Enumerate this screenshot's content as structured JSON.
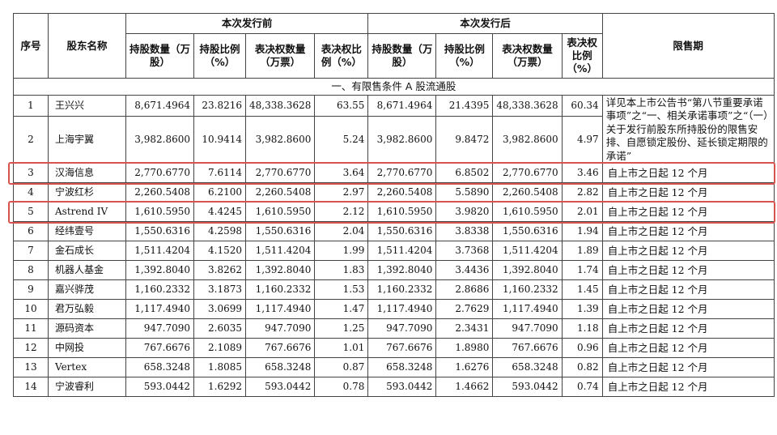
{
  "headers": {
    "idx": "序号",
    "name": "股东名称",
    "before_group": "本次发行前",
    "after_group": "本次发行后",
    "lock": "限售期",
    "sub": [
      "持股数量（万股）",
      "持股比例（%）",
      "表决权数量（万票）",
      "表决权比例（%）",
      "持股数量（万股）",
      "持股比例（%）",
      "表决权数量（万票）",
      "表决权比例（%）"
    ]
  },
  "section_title": "一、有限售条件 A 股流通股",
  "rows": [
    {
      "idx": "1",
      "name": "王兴兴",
      "b_shares": "8,671.4964",
      "b_pct": "23.8216",
      "b_votes": "48,338.3628",
      "b_vote_pct": "63.55",
      "a_shares": "8,671.4964",
      "a_pct": "21.4395",
      "a_votes": "48,338.3628",
      "a_vote_pct": "60.34",
      "lock": ""
    },
    {
      "idx": "2",
      "name": "上海宇翼",
      "b_shares": "3,982.8600",
      "b_pct": "10.9414",
      "b_votes": "3,982.8600",
      "b_vote_pct": "5.24",
      "a_shares": "3,982.8600",
      "a_pct": "9.8472",
      "a_votes": "3,982.8600",
      "a_vote_pct": "4.97",
      "lock": ""
    },
    {
      "idx": "3",
      "name": "汉海信息",
      "b_shares": "2,770.6770",
      "b_pct": "7.6114",
      "b_votes": "2,770.6770",
      "b_vote_pct": "3.64",
      "a_shares": "2,770.6770",
      "a_pct": "6.8502",
      "a_votes": "2,770.6770",
      "a_vote_pct": "3.46",
      "lock": "自上市之日起 12 个月"
    },
    {
      "idx": "4",
      "name": "宁波红杉",
      "b_shares": "2,260.5408",
      "b_pct": "6.2100",
      "b_votes": "2,260.5408",
      "b_vote_pct": "2.97",
      "a_shares": "2,260.5408",
      "a_pct": "5.5890",
      "a_votes": "2,260.5408",
      "a_vote_pct": "2.82",
      "lock": "自上市之日起 12 个月"
    },
    {
      "idx": "5",
      "name": "Astrend IV",
      "b_shares": "1,610.5950",
      "b_pct": "4.4245",
      "b_votes": "1,610.5950",
      "b_vote_pct": "2.12",
      "a_shares": "1,610.5950",
      "a_pct": "3.9820",
      "a_votes": "1,610.5950",
      "a_vote_pct": "2.01",
      "lock": "自上市之日起 12 个月"
    },
    {
      "idx": "6",
      "name": "经纬壹号",
      "b_shares": "1,550.6316",
      "b_pct": "4.2598",
      "b_votes": "1,550.6316",
      "b_vote_pct": "2.04",
      "a_shares": "1,550.6316",
      "a_pct": "3.8338",
      "a_votes": "1,550.6316",
      "a_vote_pct": "1.94",
      "lock": "自上市之日起 12 个月"
    },
    {
      "idx": "7",
      "name": "金石成长",
      "b_shares": "1,511.4204",
      "b_pct": "4.1520",
      "b_votes": "1,511.4204",
      "b_vote_pct": "1.99",
      "a_shares": "1,511.4204",
      "a_pct": "3.7368",
      "a_votes": "1,511.4204",
      "a_vote_pct": "1.89",
      "lock": "自上市之日起 12 个月"
    },
    {
      "idx": "8",
      "name": "机器人基金",
      "b_shares": "1,392.8040",
      "b_pct": "3.8262",
      "b_votes": "1,392.8040",
      "b_vote_pct": "1.83",
      "a_shares": "1,392.8040",
      "a_pct": "3.4436",
      "a_votes": "1,392.8040",
      "a_vote_pct": "1.74",
      "lock": "自上市之日起 12 个月"
    },
    {
      "idx": "9",
      "name": "嘉兴骅茂",
      "b_shares": "1,160.2332",
      "b_pct": "3.1873",
      "b_votes": "1,160.2332",
      "b_vote_pct": "1.53",
      "a_shares": "1,160.2332",
      "a_pct": "2.8686",
      "a_votes": "1,160.2332",
      "a_vote_pct": "1.45",
      "lock": "自上市之日起 12 个月"
    },
    {
      "idx": "10",
      "name": "君万弘毅",
      "b_shares": "1,117.4940",
      "b_pct": "3.0699",
      "b_votes": "1,117.4940",
      "b_vote_pct": "1.47",
      "a_shares": "1,117.4940",
      "a_pct": "2.7629",
      "a_votes": "1,117.4940",
      "a_vote_pct": "1.39",
      "lock": "自上市之日起 12 个月"
    },
    {
      "idx": "11",
      "name": "源码资本",
      "b_shares": "947.7090",
      "b_pct": "2.6035",
      "b_votes": "947.7090",
      "b_vote_pct": "1.25",
      "a_shares": "947.7090",
      "a_pct": "2.3431",
      "a_votes": "947.7090",
      "a_vote_pct": "1.18",
      "lock": "自上市之日起 12 个月"
    },
    {
      "idx": "12",
      "name": "中网投",
      "b_shares": "767.6676",
      "b_pct": "2.1089",
      "b_votes": "767.6676",
      "b_vote_pct": "1.01",
      "a_shares": "767.6676",
      "a_pct": "1.8980",
      "a_votes": "767.6676",
      "a_vote_pct": "0.96",
      "lock": "自上市之日起 12 个月"
    },
    {
      "idx": "13",
      "name": "Vertex",
      "b_shares": "658.3248",
      "b_pct": "1.8085",
      "b_votes": "658.3248",
      "b_vote_pct": "0.87",
      "a_shares": "658.3248",
      "a_pct": "1.6276",
      "a_votes": "658.3248",
      "a_vote_pct": "0.82",
      "lock": "自上市之日起 12 个月"
    },
    {
      "idx": "14",
      "name": "宁波睿利",
      "b_shares": "593.0442",
      "b_pct": "1.6292",
      "b_votes": "593.0442",
      "b_vote_pct": "0.78",
      "a_shares": "593.0442",
      "a_pct": "1.4662",
      "a_votes": "593.0442",
      "a_vote_pct": "0.74",
      "lock": "自上市之日起 12 个月"
    }
  ],
  "merged_lock_note": "详见本上市公告书“第八节重要承诺事项”之“一、相关承诺事项”之“（一）关于发行前股东所持股份的限售安排、自愿锁定股份、延长锁定期限的承诺”",
  "highlight_color": "#d9534f"
}
